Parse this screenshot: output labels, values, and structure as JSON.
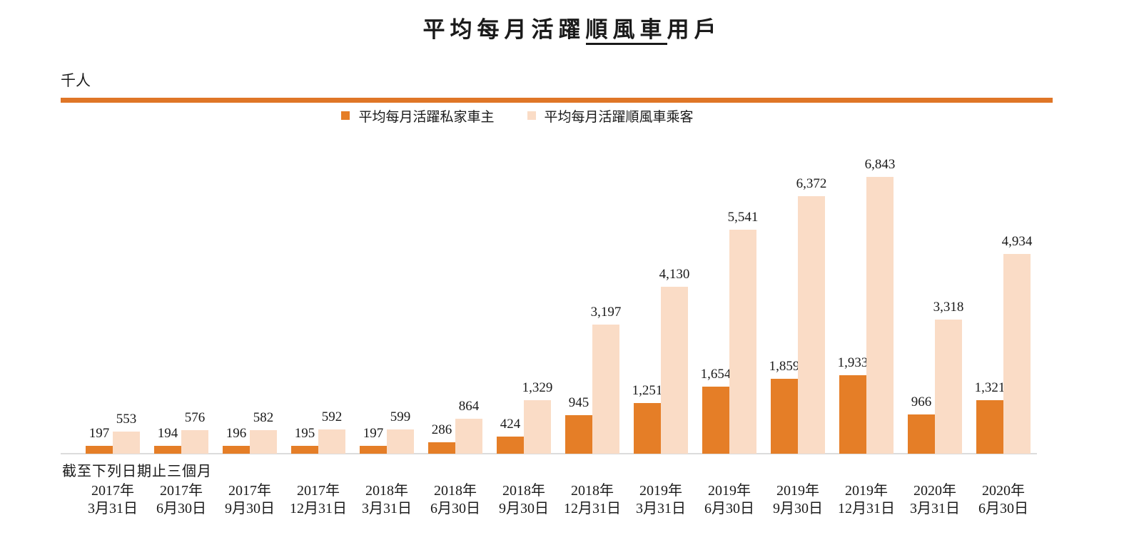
{
  "page": {
    "background": "#ffffff"
  },
  "title": {
    "prefix": "平均每月活躍",
    "underlined": "順風車",
    "suffix": "用戶",
    "full": "平均每月活躍順風車用戶"
  },
  "unit_label": "千人",
  "axis_note": "截至下列日期止三個月",
  "colors": {
    "bar_dark_orange": "#e57e27",
    "bar_light_peach": "#fadcc6",
    "divider_orange": "#df7627",
    "baseline_gray": "#dcdcdc",
    "text": "#1a1a1a"
  },
  "chart_data": {
    "type": "bar",
    "title": "平均每月活躍順風車用戶",
    "ylabel": "千人",
    "xlabel": "截至下列日期止三個月",
    "ylim": [
      0,
      6843
    ],
    "grid": false,
    "legend_position": "top-center",
    "value_labels": true,
    "categories": [
      {
        "line1": "2017年",
        "line2": "3月31日"
      },
      {
        "line1": "2017年",
        "line2": "6月30日"
      },
      {
        "line1": "2017年",
        "line2": "9月30日"
      },
      {
        "line1": "2017年",
        "line2": "12月31日"
      },
      {
        "line1": "2018年",
        "line2": "3月31日"
      },
      {
        "line1": "2018年",
        "line2": "6月30日"
      },
      {
        "line1": "2018年",
        "line2": "9月30日"
      },
      {
        "line1": "2018年",
        "line2": "12月31日"
      },
      {
        "line1": "2019年",
        "line2": "3月31日"
      },
      {
        "line1": "2019年",
        "line2": "6月30日"
      },
      {
        "line1": "2019年",
        "line2": "9月30日"
      },
      {
        "line1": "2019年",
        "line2": "12月31日"
      },
      {
        "line1": "2020年",
        "line2": "3月31日"
      },
      {
        "line1": "2020年",
        "line2": "6月30日"
      }
    ],
    "series": [
      {
        "name": "平均每月活躍私家車主",
        "color": "#e57e27",
        "values": [
          197,
          194,
          196,
          195,
          197,
          286,
          424,
          945,
          1251,
          1654,
          1859,
          1933,
          966,
          1321
        ]
      },
      {
        "name": "平均每月活躍順風車乘客",
        "color": "#fadcc6",
        "values": [
          553,
          576,
          582,
          592,
          599,
          864,
          1329,
          3197,
          4130,
          5541,
          6372,
          6843,
          3318,
          4934
        ]
      }
    ]
  }
}
